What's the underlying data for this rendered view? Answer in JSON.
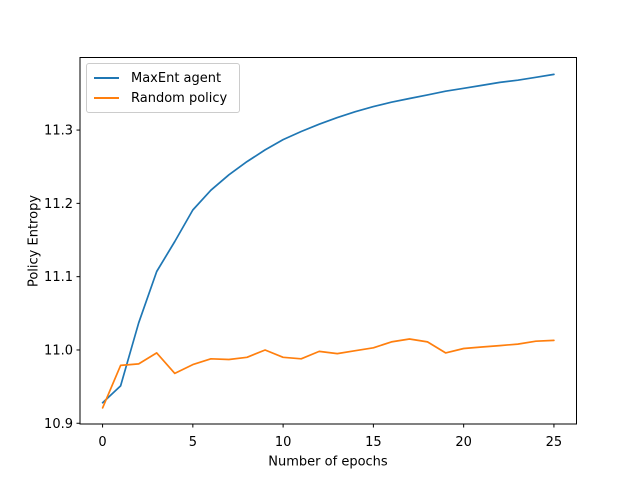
{
  "chart_data": {
    "type": "line",
    "title": "",
    "xlabel": "Number of epochs",
    "ylabel": "Policy Entropy",
    "x": [
      0,
      1,
      2,
      3,
      4,
      5,
      6,
      7,
      8,
      9,
      10,
      11,
      12,
      13,
      14,
      15,
      16,
      17,
      18,
      19,
      20,
      21,
      22,
      23,
      24,
      25
    ],
    "series": [
      {
        "name": "MaxEnt agent",
        "color": "#1f77b4",
        "values": [
          10.928,
          10.951,
          11.037,
          11.107,
          11.148,
          11.191,
          11.218,
          11.239,
          11.257,
          11.273,
          11.287,
          11.298,
          11.308,
          11.317,
          11.325,
          11.332,
          11.338,
          11.343,
          11.348,
          11.353,
          11.357,
          11.361,
          11.365,
          11.368,
          11.372,
          11.376
        ]
      },
      {
        "name": "Random policy",
        "color": "#ff7f0e",
        "values": [
          10.921,
          10.979,
          10.981,
          10.996,
          10.968,
          10.98,
          10.988,
          10.987,
          10.99,
          11.0,
          10.99,
          10.988,
          10.998,
          10.995,
          10.999,
          11.003,
          11.011,
          11.015,
          11.011,
          10.996,
          11.002,
          11.004,
          11.006,
          11.008,
          11.012,
          11.013
        ]
      }
    ],
    "xlim": [
      -1.25,
      26.25
    ],
    "ylim": [
      10.899,
      11.399
    ],
    "xticks": [
      0,
      5,
      10,
      15,
      20,
      25
    ],
    "yticks": [
      10.9,
      11.0,
      11.1,
      11.2,
      11.3
    ],
    "grid": false,
    "legend_position": "upper-left"
  },
  "colors": {
    "background": "#ffffff",
    "spine": "#000000",
    "tick_label": "#000000",
    "legend_border": "#cccccc"
  }
}
